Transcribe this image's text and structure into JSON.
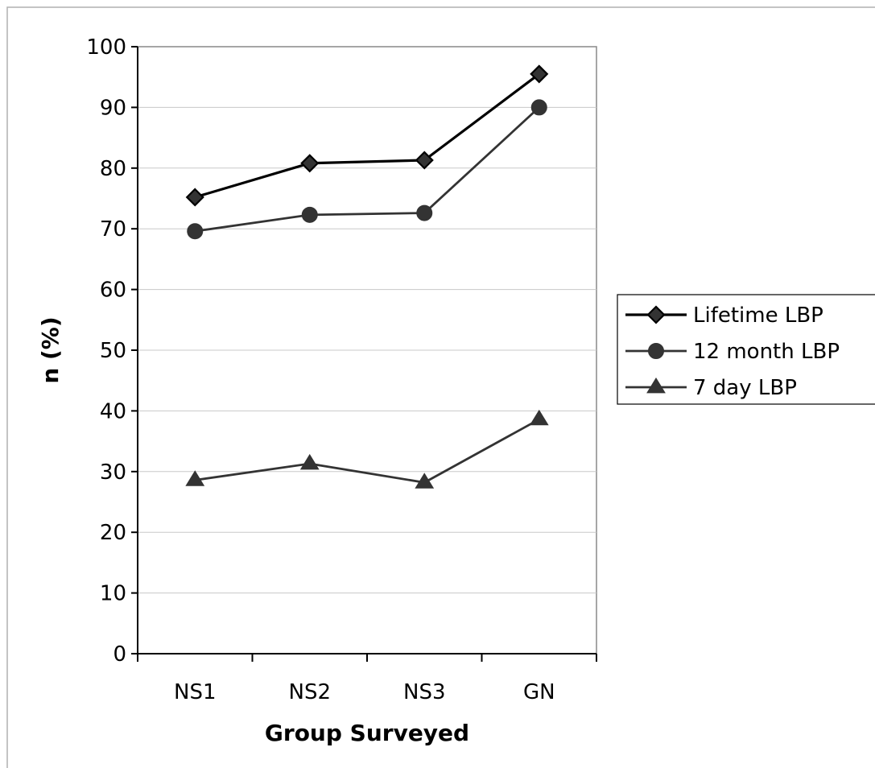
{
  "chart_data": {
    "type": "line",
    "categories": [
      "NS1",
      "NS2",
      "NS3",
      "GN"
    ],
    "xlabel": "Group Surveyed",
    "ylabel": "n (%)",
    "ylim": [
      0,
      100
    ],
    "yticks": [
      0,
      10,
      20,
      30,
      40,
      50,
      60,
      70,
      80,
      90,
      100
    ],
    "grid": true,
    "legend_position": "right",
    "series": [
      {
        "name": "Lifetime LBP",
        "marker": "diamond",
        "color": "#000000",
        "values": [
          75.2,
          80.8,
          81.3,
          95.5
        ]
      },
      {
        "name": "12 month LBP",
        "marker": "circle",
        "color": "#333333",
        "values": [
          69.6,
          72.3,
          72.6,
          90.0
        ]
      },
      {
        "name": "7 day LBP",
        "marker": "triangle",
        "color": "#333333",
        "values": [
          28.6,
          31.3,
          28.2,
          38.6
        ]
      }
    ]
  }
}
